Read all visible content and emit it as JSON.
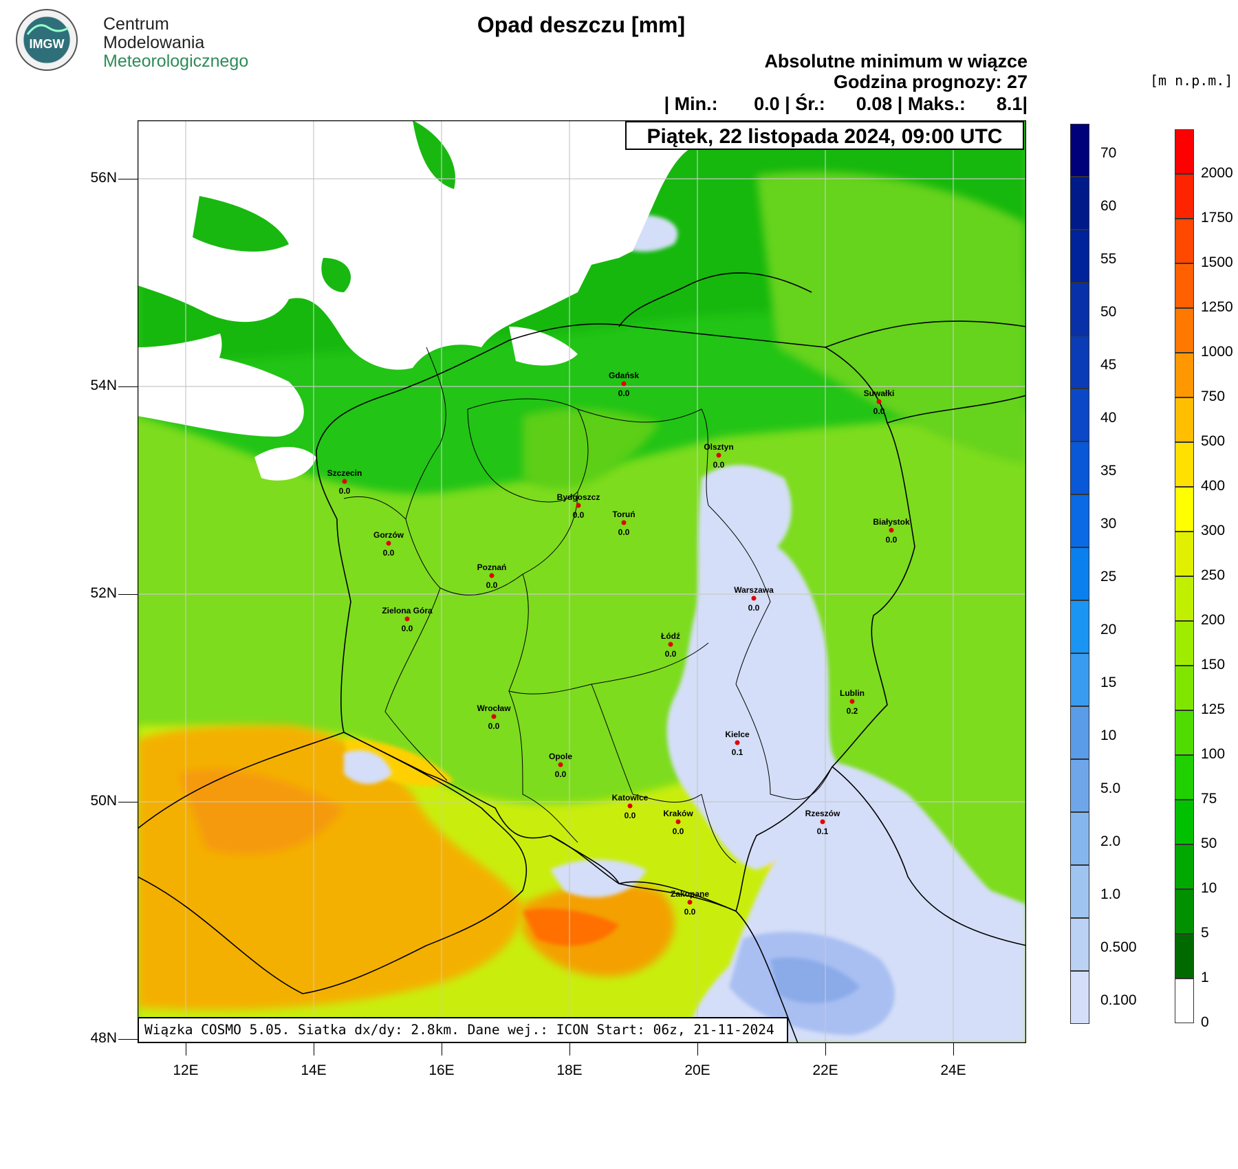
{
  "logo": {
    "badge_text": "IMGW",
    "org_line1": "Centrum",
    "org_line2": "Modelowania",
    "org_line3": "Meteorologicznego"
  },
  "title": "Opad deszczu [mm]",
  "subtitle": "Absolutne minimum w wiązce",
  "forecast_hour": "Godzina prognozy: 27",
  "stats": "| Min.:       0.0 | Śr.:      0.08 | Maks.:      8.1|",
  "datetime": "Piątek, 22 listopada 2024, 09:00 UTC",
  "footer": "Wiązka COSMO 5.05. Siatka dx/dy: 2.8km. Dane wej.: ICON Start: 06z, 21-11-2024",
  "elevation_units": "[m n.p.m.]",
  "axes": {
    "lat_ticks": [
      "56N",
      "54N",
      "52N",
      "50N",
      "48N"
    ],
    "lon_ticks": [
      "12E",
      "14E",
      "16E",
      "18E",
      "20E",
      "22E",
      "24E"
    ]
  },
  "rain_scale": {
    "labels": [
      "70",
      "60",
      "55",
      "50",
      "45",
      "40",
      "35",
      "30",
      "25",
      "20",
      "15",
      "10",
      "5.0",
      "2.0",
      "1.0",
      "0.500",
      "0.100"
    ],
    "colors": [
      "#00007a",
      "#001a8a",
      "#00229a",
      "#0830a8",
      "#0a3cb8",
      "#0a48c8",
      "#0858d8",
      "#0a6ae6",
      "#0a80ee",
      "#1a95f4",
      "#3a9cf0",
      "#5a9ce8",
      "#6fa6ea",
      "#86b6ee",
      "#a0c4f0",
      "#bcd2f4",
      "#d4def8"
    ]
  },
  "elevation_scale": {
    "labels": [
      "2000",
      "1750",
      "1500",
      "1250",
      "1000",
      "750",
      "500",
      "400",
      "300",
      "250",
      "200",
      "150",
      "125",
      "100",
      "75",
      "50",
      "10",
      "5",
      "1",
      "0"
    ],
    "colors": [
      "#ff0000",
      "#ff2400",
      "#ff4800",
      "#ff6000",
      "#ff7800",
      "#ff9800",
      "#ffbe00",
      "#ffe000",
      "#ffff00",
      "#e0f000",
      "#c0f000",
      "#a0ec00",
      "#80e600",
      "#50dc00",
      "#20d000",
      "#00c000",
      "#00a800",
      "#009000",
      "#006a00",
      "#ffffff"
    ]
  },
  "cities": [
    {
      "name": "Gdańsk",
      "value": "0.0"
    },
    {
      "name": "Suwałki",
      "value": "0.0"
    },
    {
      "name": "Olsztyn",
      "value": "0.0"
    },
    {
      "name": "Szczecin",
      "value": "0.0"
    },
    {
      "name": "Bydgoszcz",
      "value": "0.0"
    },
    {
      "name": "Toruń",
      "value": "0.0"
    },
    {
      "name": "Białystok",
      "value": "0.0"
    },
    {
      "name": "Gorzów",
      "value": "0.0"
    },
    {
      "name": "Poznań",
      "value": "0.0"
    },
    {
      "name": "Warszawa",
      "value": "0.0"
    },
    {
      "name": "Zielona Góra",
      "value": "0.0"
    },
    {
      "name": "Łódź",
      "value": "0.0"
    },
    {
      "name": "Lublin",
      "value": "0.2"
    },
    {
      "name": "Wrocław",
      "value": "0.0"
    },
    {
      "name": "Kielce",
      "value": "0.1"
    },
    {
      "name": "Opole",
      "value": "0.0"
    },
    {
      "name": "Katowice",
      "value": "0.0"
    },
    {
      "name": "Kraków",
      "value": "0.0"
    },
    {
      "name": "Rzeszów",
      "value": "0.1"
    },
    {
      "name": "Zakopane",
      "value": "0.0"
    }
  ]
}
